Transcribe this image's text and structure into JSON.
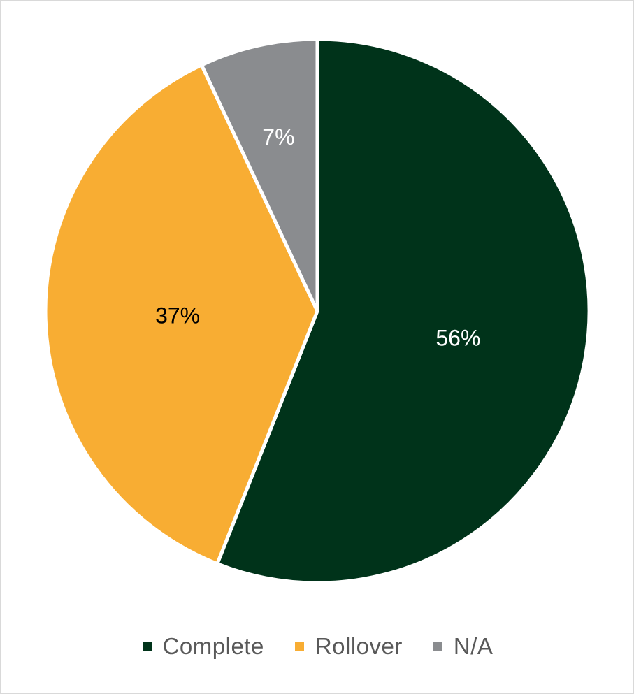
{
  "chart_data": {
    "type": "pie",
    "categories": [
      "Complete",
      "Rollover",
      "N/A"
    ],
    "values": [
      56,
      37,
      7
    ],
    "data_labels": [
      "56%",
      "37%",
      "7%"
    ],
    "colors": [
      "#00331a",
      "#f8ad33",
      "#8a8c8f"
    ],
    "label_colors": [
      "#ffffff",
      "#000000",
      "#ffffff"
    ],
    "start_angle_deg": 0,
    "direction": "clockwise",
    "legend_position": "bottom"
  },
  "legend": {
    "items": [
      {
        "label": "Complete",
        "color": "#00331a"
      },
      {
        "label": "Rollover",
        "color": "#f8ad33"
      },
      {
        "label": "N/A",
        "color": "#8a8c8f"
      }
    ]
  }
}
